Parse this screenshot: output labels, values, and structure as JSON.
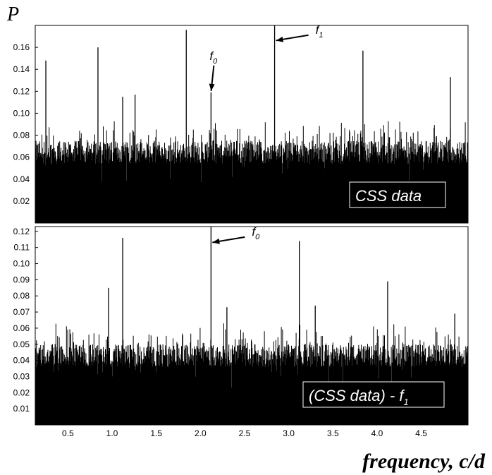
{
  "chart_data": [
    {
      "type": "bar",
      "panel": "top",
      "ylabel": "P",
      "ylim": [
        0,
        0.18
      ],
      "xlim": [
        0.13,
        5.03
      ],
      "yticks": [
        "0.02",
        "0.04",
        "0.06",
        "0.08",
        "0.10",
        "0.12",
        "0.14",
        "0.16"
      ],
      "grid": false,
      "noise": {
        "floor_min": 0.0,
        "typical_max": 0.075,
        "spread": 0.02
      },
      "peaks": [
        {
          "x": 0.25,
          "y": 0.148
        },
        {
          "x": 0.84,
          "y": 0.16
        },
        {
          "x": 1.12,
          "y": 0.115
        },
        {
          "x": 1.26,
          "y": 0.117
        },
        {
          "x": 1.84,
          "y": 0.176
        },
        {
          "x": 2.12,
          "y": 0.119
        },
        {
          "x": 2.84,
          "y": 0.18
        },
        {
          "x": 3.84,
          "y": 0.157
        },
        {
          "x": 4.83,
          "y": 0.133
        }
      ],
      "legend_box": "CSS data",
      "annotations": [
        {
          "text": "f",
          "sub": "0",
          "target_x": 2.12,
          "target_y": 0.119
        },
        {
          "text": "f",
          "sub": "1",
          "target_x": 2.84,
          "target_y": 0.166
        }
      ]
    },
    {
      "type": "bar",
      "panel": "bottom",
      "ylim": [
        0,
        0.123
      ],
      "xlim": [
        0.13,
        5.03
      ],
      "yticks": [
        "0.01",
        "0.02",
        "0.03",
        "0.04",
        "0.05",
        "0.06",
        "0.07",
        "0.08",
        "0.09",
        "0.10",
        "0.11",
        "0.12"
      ],
      "xticks": [
        "0.5",
        "1.0",
        "1.5",
        "2.0",
        "2.5",
        "3.0",
        "3.5",
        "4.0",
        "4.5"
      ],
      "xlabel": "frequency,  c/d",
      "grid": false,
      "noise": {
        "floor_min": 0.0,
        "typical_max": 0.05,
        "spread": 0.013
      },
      "peaks": [
        {
          "x": 0.96,
          "y": 0.085
        },
        {
          "x": 1.12,
          "y": 0.116
        },
        {
          "x": 2.12,
          "y": 0.123
        },
        {
          "x": 2.3,
          "y": 0.073
        },
        {
          "x": 3.12,
          "y": 0.114
        },
        {
          "x": 3.3,
          "y": 0.074
        },
        {
          "x": 4.12,
          "y": 0.089
        },
        {
          "x": 4.88,
          "y": 0.069
        }
      ],
      "legend_box": "(CSS data) - f",
      "legend_box_sub": "1",
      "annotations": [
        {
          "text": "f",
          "sub": "0",
          "target_x": 2.12,
          "target_y": 0.113
        }
      ]
    }
  ]
}
